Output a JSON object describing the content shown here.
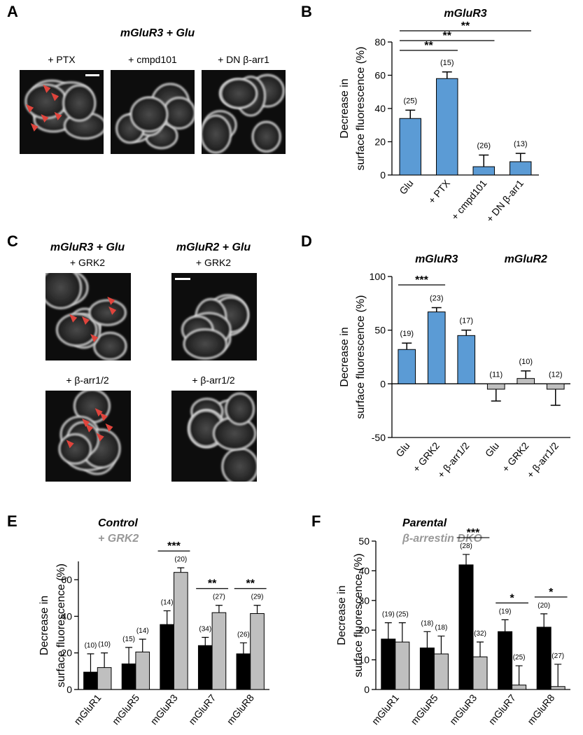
{
  "micrographs": {
    "A": {
      "panel": "A",
      "title": "mGluR3 + Glu",
      "labels": [
        "+ PTX",
        "+ cmpd101",
        "+ DN β-arr1"
      ]
    },
    "C": {
      "panel": "C",
      "columns": [
        {
          "title": "mGluR3 + Glu",
          "labels": [
            "+ GRK2",
            "+ β-arr1/2"
          ]
        },
        {
          "title": "mGluR2 + Glu",
          "labels": [
            "+ GRK2",
            "+ β-arr1/2"
          ]
        }
      ]
    }
  },
  "chart_data": [
    {
      "type": "bar",
      "panel": "B",
      "title": "mGluR3",
      "ylabel": [
        "Decrease in",
        "surface fluorescence (%)"
      ],
      "categories": [
        "Glu",
        "+ PTX",
        "+ cmpd101",
        "+ DN β-arr1"
      ],
      "values": [
        34,
        58,
        5,
        8
      ],
      "errors": [
        5,
        4,
        7,
        5
      ],
      "n_labels": [
        "(25)",
        "(15)",
        "(26)",
        "(13)"
      ],
      "colors": [
        "#5b9bd5",
        "#5b9bd5",
        "#5b9bd5",
        "#5b9bd5"
      ],
      "ylim": [
        0,
        80
      ],
      "yticks": [
        0,
        20,
        40,
        60,
        80
      ],
      "significance": [
        {
          "from": 0,
          "to": 1,
          "label": "**"
        },
        {
          "from": 0,
          "to": 2,
          "label": "**"
        },
        {
          "from": 0,
          "to": 3,
          "label": "**"
        }
      ]
    },
    {
      "type": "bar",
      "panel": "D",
      "groups": [
        "mGluR3",
        "mGluR2"
      ],
      "ylabel": [
        "Decrease in",
        "surface fluorescence (%)"
      ],
      "categories": [
        "Glu",
        "+ GRK2",
        "+ β-arr1/2",
        "Glu",
        "+ GRK2",
        "+ β-arr1/2"
      ],
      "values": [
        32,
        67,
        45,
        -5,
        5,
        -5
      ],
      "errors": [
        6,
        4,
        5,
        11,
        7,
        15
      ],
      "n_labels": [
        "(19)",
        "(23)",
        "(17)",
        "(11)",
        "(10)",
        "(12)"
      ],
      "colors": [
        "#5b9bd5",
        "#5b9bd5",
        "#5b9bd5",
        "#bfbfbf",
        "#bfbfbf",
        "#bfbfbf"
      ],
      "ylim": [
        -50,
        100
      ],
      "yticks": [
        -50,
        0,
        50,
        100
      ],
      "significance": [
        {
          "from": 0,
          "to": 1,
          "label": "***"
        }
      ]
    },
    {
      "type": "grouped_bar",
      "panel": "E",
      "ylabel": [
        "Decrease in",
        "surface fluorescence (%)"
      ],
      "categories": [
        "mGluR1",
        "mGluR5",
        "mGluR3",
        "mGluR7",
        "mGluR8"
      ],
      "series": [
        {
          "name": "Control",
          "color": "#000000",
          "values": [
            9.5,
            14,
            35.5,
            24,
            19.5
          ],
          "errors": [
            10,
            9,
            7.5,
            4.5,
            6
          ],
          "n_labels": [
            "(10)",
            "(15)",
            "(14)",
            "(34)",
            "(26)"
          ]
        },
        {
          "name": "+ GRK2",
          "color": "#bfbfbf",
          "values": [
            12,
            20.5,
            64,
            42,
            41.5
          ],
          "errors": [
            8,
            7,
            2.5,
            4,
            4.5
          ],
          "n_labels": [
            "(10)",
            "(14)",
            "(20)",
            "(27)",
            "(29)"
          ]
        }
      ],
      "ylim": [
        0,
        70
      ],
      "yticks": [
        0,
        20,
        40,
        60
      ],
      "significance": [
        {
          "category": 2,
          "label": "***"
        },
        {
          "category": 3,
          "label": "**"
        },
        {
          "category": 4,
          "label": "**"
        }
      ]
    },
    {
      "type": "grouped_bar",
      "panel": "F",
      "ylabel": [
        "Decrease in",
        "surface fluorescence (%)"
      ],
      "categories": [
        "mGluR1",
        "mGluR5",
        "mGluR3",
        "mGluR7",
        "mGluR8"
      ],
      "series": [
        {
          "name": "Parental",
          "color": "#000000",
          "values": [
            17,
            14,
            42,
            19.5,
            21
          ],
          "errors": [
            5.5,
            5.5,
            3.5,
            4,
            4.5
          ],
          "n_labels": [
            "(19)",
            "(18)",
            "(28)",
            "(19)",
            "(20)"
          ]
        },
        {
          "name": "β-arrestin DKO",
          "color": "#bfbfbf",
          "values": [
            16,
            12,
            11,
            1.5,
            1
          ],
          "errors": [
            6.5,
            6,
            5,
            6.5,
            7.5
          ],
          "n_labels": [
            "(25)",
            "(18)",
            "(32)",
            "(25)",
            "(27)"
          ]
        }
      ],
      "ylim": [
        0,
        50
      ],
      "yticks": [
        0,
        10,
        20,
        30,
        40,
        50
      ],
      "significance": [
        {
          "category": 2,
          "label": "***"
        },
        {
          "category": 3,
          "label": "*"
        },
        {
          "category": 4,
          "label": "*"
        }
      ]
    }
  ]
}
